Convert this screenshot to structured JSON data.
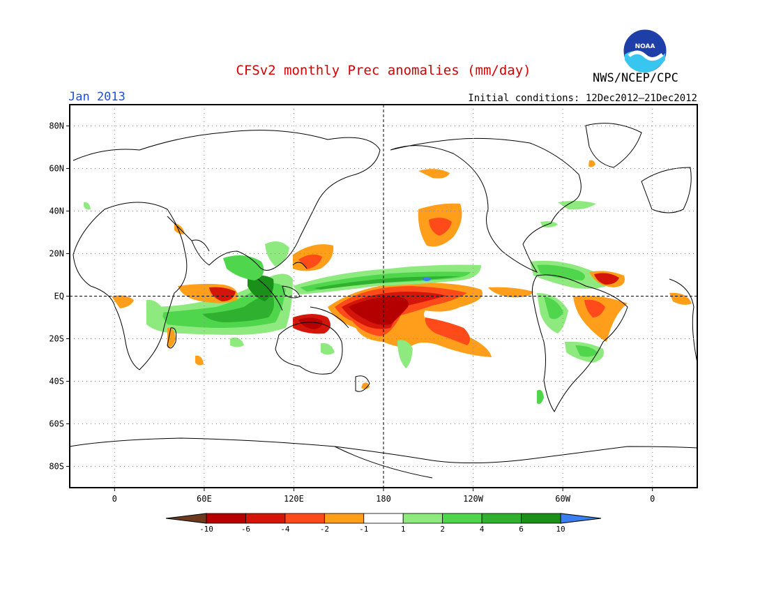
{
  "header": {
    "title": "CFSv2 monthly Prec anomalies (mm/day)",
    "month": "Jan 2013",
    "initial_conditions": "Initial conditions: 12Dec2012–21Dec2012",
    "org": "NWS/NCEP/CPC",
    "logo_text": "NOAA"
  },
  "map": {
    "lat_labels": [
      "80N",
      "60N",
      "40N",
      "20N",
      "EQ",
      "20S",
      "40S",
      "60S",
      "80S"
    ],
    "lat_values": [
      80,
      60,
      40,
      20,
      0,
      -20,
      -40,
      -60,
      -80
    ],
    "lon_labels": [
      "0",
      "60E",
      "120E",
      "180",
      "120W",
      "60W",
      "0"
    ],
    "lon_values": [
      0,
      60,
      120,
      180,
      240,
      300,
      360
    ],
    "lon_range": [
      -30,
      390
    ],
    "lat_range": [
      -90,
      90
    ]
  },
  "legend": {
    "labels": [
      "-10",
      "-6",
      "-4",
      "-2",
      "-1",
      "1",
      "2",
      "4",
      "6",
      "10"
    ],
    "colors": [
      "#6e3a1f",
      "#b40000",
      "#d4160a",
      "#ff4a1a",
      "#ff9e1a",
      "#ffffff",
      "#8eea7e",
      "#4fd64c",
      "#2fb02f",
      "#1a8f1a",
      "#3a7ff0"
    ]
  },
  "colors": {
    "dry_dark": "#b40000",
    "dry_mid": "#e02a10",
    "dry_light": "#ff9e1a",
    "wet_light": "#8eea7e",
    "wet_mid": "#4fd64c",
    "wet_dark": "#1a8f1a",
    "wet_extreme": "#3a7ff0"
  }
}
